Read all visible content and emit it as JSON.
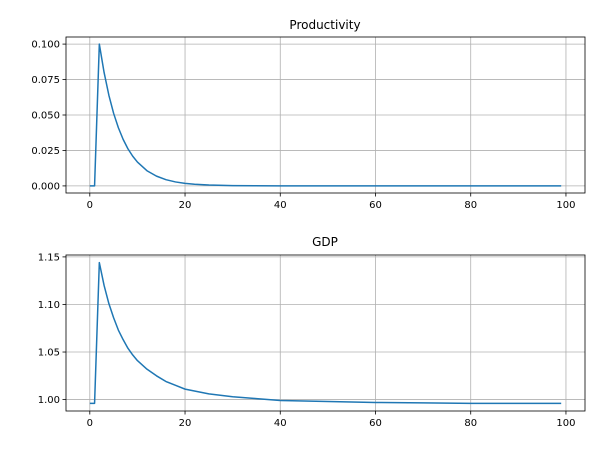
{
  "chart_data": [
    {
      "type": "line",
      "title": "Productivity",
      "xlabel": "",
      "ylabel": "",
      "xlim": [
        -5,
        104
      ],
      "ylim": [
        -0.005,
        0.105
      ],
      "grid": true,
      "x_ticks": [
        0,
        20,
        40,
        60,
        80,
        100
      ],
      "x_tick_labels": [
        "0",
        "20",
        "40",
        "60",
        "80",
        "100"
      ],
      "y_ticks": [
        0,
        0.025,
        0.05,
        0.075,
        0.1
      ],
      "y_tick_labels": [
        "0.000",
        "0.025",
        "0.050",
        "0.075",
        "0.100"
      ],
      "series": [
        {
          "color": "#1f77b4",
          "x": [
            0,
            1,
            2,
            3,
            4,
            5,
            6,
            7,
            8,
            9,
            10,
            12,
            14,
            16,
            18,
            20,
            22,
            25,
            30,
            40,
            50,
            60,
            70,
            80,
            90,
            99
          ],
          "y": [
            0,
            0,
            0.1,
            0.08,
            0.064,
            0.0512,
            0.041,
            0.0328,
            0.0262,
            0.021,
            0.0168,
            0.0107,
            0.0069,
            0.0044,
            0.0028,
            0.0018,
            0.0012,
            0.0006,
            0.0002,
            0,
            0,
            0,
            0,
            0,
            0,
            0
          ]
        }
      ]
    },
    {
      "type": "line",
      "title": "GDP",
      "xlabel": "",
      "ylabel": "",
      "xlim": [
        -5,
        104
      ],
      "ylim": [
        0.988,
        1.152
      ],
      "grid": true,
      "x_ticks": [
        0,
        20,
        40,
        60,
        80,
        100
      ],
      "x_tick_labels": [
        "0",
        "20",
        "40",
        "60",
        "80",
        "100"
      ],
      "y_ticks": [
        1.0,
        1.05,
        1.1,
        1.15
      ],
      "y_tick_labels": [
        "1.00",
        "1.05",
        "1.10",
        "1.15"
      ],
      "series": [
        {
          "color": "#1f77b4",
          "x": [
            0,
            1,
            2,
            3,
            4,
            5,
            6,
            7,
            8,
            9,
            10,
            12,
            14,
            16,
            18,
            20,
            25,
            30,
            35,
            40,
            50,
            60,
            70,
            80,
            90,
            99
          ],
          "y": [
            0.996,
            0.996,
            1.144,
            1.12,
            1.101,
            1.086,
            1.073,
            1.063,
            1.054,
            1.047,
            1.041,
            1.032,
            1.025,
            1.019,
            1.015,
            1.011,
            1.006,
            1.003,
            1.001,
            0.999,
            0.998,
            0.997,
            0.9965,
            0.996,
            0.996,
            0.996
          ]
        }
      ]
    }
  ]
}
